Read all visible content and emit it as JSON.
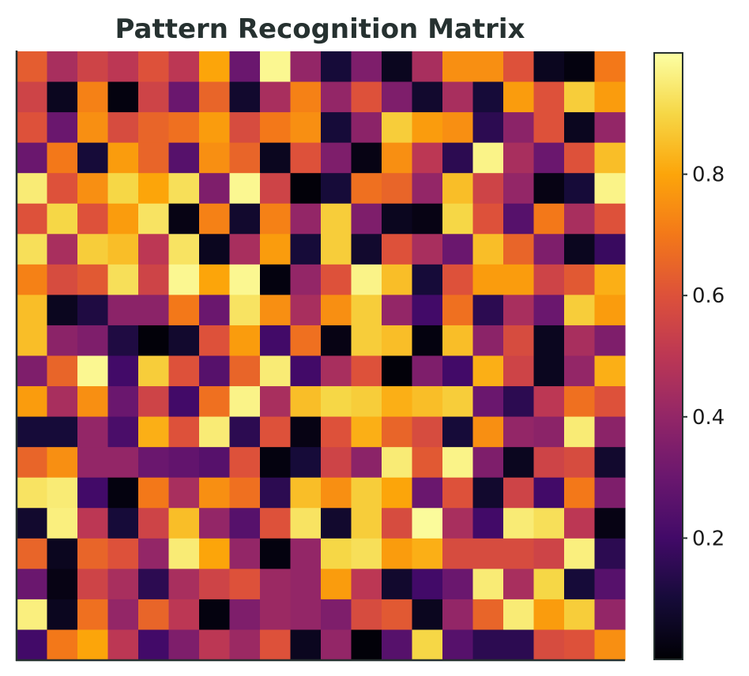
{
  "chart_data": {
    "type": "heatmap",
    "title": "Pattern Recognition Matrix",
    "xlabel": "",
    "ylabel": "",
    "colormap": "inferno",
    "colorbar": {
      "range": [
        0.0,
        1.0
      ],
      "ticks": [
        0.2,
        0.4,
        0.6,
        0.8
      ],
      "tick_labels": [
        "0.2",
        "0.4",
        "0.6",
        "0.8"
      ]
    },
    "rows": 20,
    "cols": 20,
    "values": [
      [
        0.63,
        0.45,
        0.55,
        0.5,
        0.6,
        0.5,
        0.8,
        0.3,
        0.98,
        0.4,
        0.1,
        0.35,
        0.05,
        0.45,
        0.75,
        0.75,
        0.6,
        0.05,
        0.02,
        0.7
      ],
      [
        0.55,
        0.05,
        0.72,
        0.02,
        0.55,
        0.3,
        0.65,
        0.08,
        0.45,
        0.72,
        0.4,
        0.6,
        0.35,
        0.08,
        0.45,
        0.1,
        0.78,
        0.6,
        0.88,
        0.78
      ],
      [
        0.6,
        0.3,
        0.75,
        0.58,
        0.65,
        0.68,
        0.78,
        0.58,
        0.7,
        0.75,
        0.1,
        0.38,
        0.88,
        0.78,
        0.75,
        0.15,
        0.38,
        0.6,
        0.05,
        0.4
      ],
      [
        0.3,
        0.7,
        0.1,
        0.78,
        0.65,
        0.25,
        0.75,
        0.65,
        0.05,
        0.6,
        0.35,
        0.03,
        0.75,
        0.5,
        0.15,
        0.97,
        0.45,
        0.3,
        0.6,
        0.85
      ],
      [
        0.95,
        0.6,
        0.75,
        0.9,
        0.8,
        0.92,
        0.35,
        0.98,
        0.55,
        0.01,
        0.1,
        0.68,
        0.65,
        0.4,
        0.85,
        0.55,
        0.4,
        0.03,
        0.1,
        0.97
      ],
      [
        0.6,
        0.9,
        0.6,
        0.78,
        0.93,
        0.03,
        0.72,
        0.08,
        0.72,
        0.4,
        0.88,
        0.35,
        0.05,
        0.03,
        0.9,
        0.6,
        0.25,
        0.7,
        0.45,
        0.6
      ],
      [
        0.92,
        0.45,
        0.88,
        0.85,
        0.5,
        0.93,
        0.05,
        0.45,
        0.78,
        0.1,
        0.88,
        0.08,
        0.6,
        0.45,
        0.3,
        0.85,
        0.65,
        0.35,
        0.05,
        0.18
      ],
      [
        0.72,
        0.58,
        0.62,
        0.92,
        0.55,
        0.98,
        0.8,
        0.98,
        0.02,
        0.4,
        0.6,
        0.97,
        0.85,
        0.1,
        0.6,
        0.78,
        0.78,
        0.55,
        0.62,
        0.82
      ],
      [
        0.85,
        0.05,
        0.12,
        0.38,
        0.38,
        0.7,
        0.3,
        0.93,
        0.75,
        0.45,
        0.75,
        0.88,
        0.4,
        0.2,
        0.68,
        0.15,
        0.45,
        0.3,
        0.88,
        0.78
      ],
      [
        0.85,
        0.38,
        0.35,
        0.12,
        0.01,
        0.08,
        0.6,
        0.78,
        0.2,
        0.68,
        0.03,
        0.88,
        0.85,
        0.02,
        0.85,
        0.38,
        0.58,
        0.05,
        0.45,
        0.35
      ],
      [
        0.35,
        0.65,
        0.98,
        0.2,
        0.88,
        0.6,
        0.25,
        0.65,
        0.95,
        0.2,
        0.45,
        0.6,
        0.01,
        0.35,
        0.2,
        0.82,
        0.55,
        0.05,
        0.4,
        0.82
      ],
      [
        0.78,
        0.45,
        0.75,
        0.3,
        0.55,
        0.2,
        0.68,
        0.97,
        0.45,
        0.85,
        0.9,
        0.88,
        0.82,
        0.85,
        0.88,
        0.3,
        0.15,
        0.5,
        0.68,
        0.6
      ],
      [
        0.1,
        0.1,
        0.4,
        0.22,
        0.82,
        0.6,
        0.95,
        0.15,
        0.6,
        0.03,
        0.6,
        0.82,
        0.65,
        0.58,
        0.1,
        0.75,
        0.4,
        0.38,
        0.95,
        0.38
      ],
      [
        0.65,
        0.75,
        0.4,
        0.4,
        0.3,
        0.28,
        0.25,
        0.6,
        0.02,
        0.1,
        0.55,
        0.38,
        0.95,
        0.62,
        0.97,
        0.35,
        0.05,
        0.55,
        0.58,
        0.08
      ],
      [
        0.93,
        0.95,
        0.2,
        0.02,
        0.7,
        0.45,
        0.75,
        0.68,
        0.15,
        0.85,
        0.75,
        0.88,
        0.8,
        0.3,
        0.6,
        0.08,
        0.55,
        0.2,
        0.7,
        0.35
      ],
      [
        0.08,
        0.96,
        0.5,
        0.1,
        0.55,
        0.85,
        0.4,
        0.25,
        0.6,
        0.93,
        0.08,
        0.88,
        0.58,
        0.99,
        0.45,
        0.2,
        0.95,
        0.92,
        0.5,
        0.03
      ],
      [
        0.65,
        0.05,
        0.65,
        0.6,
        0.4,
        0.95,
        0.8,
        0.4,
        0.02,
        0.4,
        0.9,
        0.92,
        0.78,
        0.82,
        0.58,
        0.58,
        0.58,
        0.55,
        0.96,
        0.15
      ],
      [
        0.3,
        0.03,
        0.55,
        0.45,
        0.15,
        0.45,
        0.55,
        0.6,
        0.42,
        0.4,
        0.78,
        0.5,
        0.08,
        0.2,
        0.3,
        0.95,
        0.45,
        0.9,
        0.1,
        0.25
      ],
      [
        0.96,
        0.05,
        0.68,
        0.4,
        0.65,
        0.5,
        0.02,
        0.35,
        0.42,
        0.4,
        0.35,
        0.58,
        0.62,
        0.05,
        0.4,
        0.65,
        0.95,
        0.78,
        0.88,
        0.4
      ],
      [
        0.2,
        0.7,
        0.8,
        0.5,
        0.2,
        0.35,
        0.5,
        0.42,
        0.6,
        0.05,
        0.4,
        0.01,
        0.25,
        0.9,
        0.25,
        0.15,
        0.15,
        0.58,
        0.6,
        0.75
      ]
    ]
  }
}
